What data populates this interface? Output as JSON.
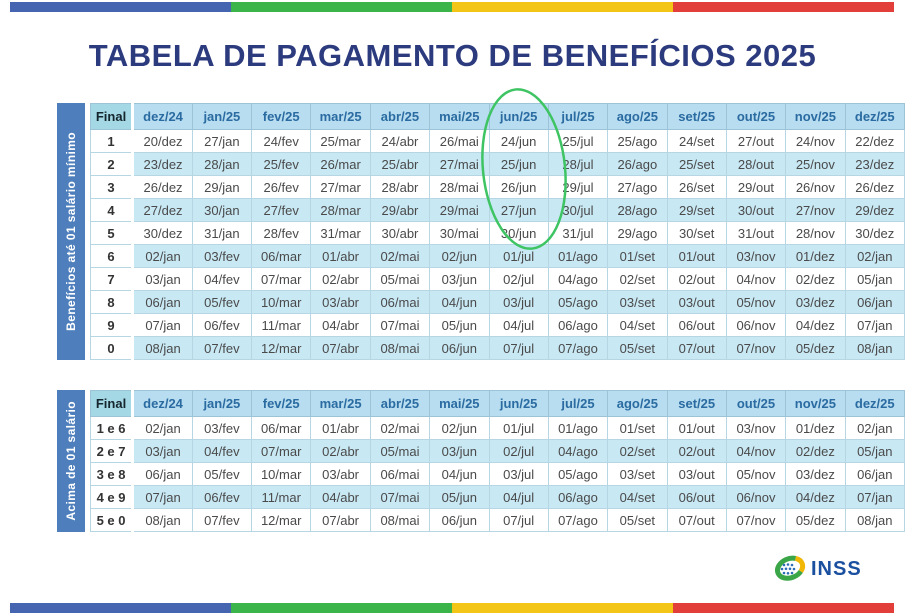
{
  "title": "TABELA DE PAGAMENTO DE BENEFÍCIOS 2025",
  "columns": [
    "Final",
    "dez/24",
    "jan/25",
    "fev/25",
    "mar/25",
    "abr/25",
    "mai/25",
    "jun/25",
    "jul/25",
    "ago/25",
    "set/25",
    "out/25",
    "nov/25",
    "dez/25"
  ],
  "table1": {
    "side_label": "Benefícios até 01 salário mínimo",
    "rows": [
      {
        "final": "1",
        "cells": [
          "20/dez",
          "27/jan",
          "24/fev",
          "25/mar",
          "24/abr",
          "26/mai",
          "24/jun",
          "25/jul",
          "25/ago",
          "24/set",
          "27/out",
          "24/nov",
          "22/dez"
        ]
      },
      {
        "final": "2",
        "cells": [
          "23/dez",
          "28/jan",
          "25/fev",
          "26/mar",
          "25/abr",
          "27/mai",
          "25/jun",
          "28/jul",
          "26/ago",
          "25/set",
          "28/out",
          "25/nov",
          "23/dez"
        ]
      },
      {
        "final": "3",
        "cells": [
          "26/dez",
          "29/jan",
          "26/fev",
          "27/mar",
          "28/abr",
          "28/mai",
          "26/jun",
          "29/jul",
          "27/ago",
          "26/set",
          "29/out",
          "26/nov",
          "26/dez"
        ]
      },
      {
        "final": "4",
        "cells": [
          "27/dez",
          "30/jan",
          "27/fev",
          "28/mar",
          "29/abr",
          "29/mai",
          "27/jun",
          "30/jul",
          "28/ago",
          "29/set",
          "30/out",
          "27/nov",
          "29/dez"
        ]
      },
      {
        "final": "5",
        "cells": [
          "30/dez",
          "31/jan",
          "28/fev",
          "31/mar",
          "30/abr",
          "30/mai",
          "30/jun",
          "31/jul",
          "29/ago",
          "30/set",
          "31/out",
          "28/nov",
          "30/dez"
        ]
      },
      {
        "final": "6",
        "cells": [
          "02/jan",
          "03/fev",
          "06/mar",
          "01/abr",
          "02/mai",
          "02/jun",
          "01/jul",
          "01/ago",
          "01/set",
          "01/out",
          "03/nov",
          "01/dez",
          "02/jan"
        ]
      },
      {
        "final": "7",
        "cells": [
          "03/jan",
          "04/fev",
          "07/mar",
          "02/abr",
          "05/mai",
          "03/jun",
          "02/jul",
          "04/ago",
          "02/set",
          "02/out",
          "04/nov",
          "02/dez",
          "05/jan"
        ]
      },
      {
        "final": "8",
        "cells": [
          "06/jan",
          "05/fev",
          "10/mar",
          "03/abr",
          "06/mai",
          "04/jun",
          "03/jul",
          "05/ago",
          "03/set",
          "03/out",
          "05/nov",
          "03/dez",
          "06/jan"
        ]
      },
      {
        "final": "9",
        "cells": [
          "07/jan",
          "06/fev",
          "11/mar",
          "04/abr",
          "07/mai",
          "05/jun",
          "04/jul",
          "06/ago",
          "04/set",
          "06/out",
          "06/nov",
          "04/dez",
          "07/jan"
        ]
      },
      {
        "final": "0",
        "cells": [
          "08/jan",
          "07/fev",
          "12/mar",
          "07/abr",
          "08/mai",
          "06/jun",
          "07/jul",
          "07/ago",
          "05/set",
          "07/out",
          "07/nov",
          "05/dez",
          "08/jan"
        ]
      }
    ]
  },
  "table2": {
    "side_label": "Acima de 01 salário",
    "rows": [
      {
        "final": "1 e 6",
        "cells": [
          "02/jan",
          "03/fev",
          "06/mar",
          "01/abr",
          "02/mai",
          "02/jun",
          "01/jul",
          "01/ago",
          "01/set",
          "01/out",
          "03/nov",
          "01/dez",
          "02/jan"
        ]
      },
      {
        "final": "2 e 7",
        "cells": [
          "03/jan",
          "04/fev",
          "07/mar",
          "02/abr",
          "05/mai",
          "03/jun",
          "02/jul",
          "04/ago",
          "02/set",
          "02/out",
          "04/nov",
          "02/dez",
          "05/jan"
        ]
      },
      {
        "final": "3 e 8",
        "cells": [
          "06/jan",
          "05/fev",
          "10/mar",
          "03/abr",
          "06/mai",
          "04/jun",
          "03/jul",
          "05/ago",
          "03/set",
          "03/out",
          "05/nov",
          "03/dez",
          "06/jan"
        ]
      },
      {
        "final": "4 e 9",
        "cells": [
          "07/jan",
          "06/fev",
          "11/mar",
          "04/abr",
          "07/mai",
          "05/jun",
          "04/jul",
          "06/ago",
          "04/set",
          "06/out",
          "06/nov",
          "04/dez",
          "07/jan"
        ]
      },
      {
        "final": "5 e 0",
        "cells": [
          "08/jan",
          "07/fev",
          "12/mar",
          "07/abr",
          "08/mai",
          "06/jun",
          "07/jul",
          "07/ago",
          "05/set",
          "07/out",
          "07/nov",
          "05/dez",
          "08/jan"
        ]
      }
    ]
  },
  "highlight": {
    "circled_column": "jul/25",
    "color": "#3ec463"
  },
  "logo": {
    "text": "INSS"
  },
  "stripes": [
    "#4565b0",
    "#3bb54a",
    "#f3c517",
    "#e23e3a"
  ],
  "colors": {
    "title": "#2c3a7e",
    "sidebar": "#4e7fbc",
    "header_bg": "#b8ddf0",
    "header_text": "#2a6ba1",
    "final_header_bg": "#a3d8e4",
    "alt_row_bg": "#c8e8f4",
    "cell_text": "#4a4a4a",
    "logo_blue": "#1b4fa0",
    "logo_green": "#3aa648",
    "logo_yellow": "#f2b705"
  }
}
